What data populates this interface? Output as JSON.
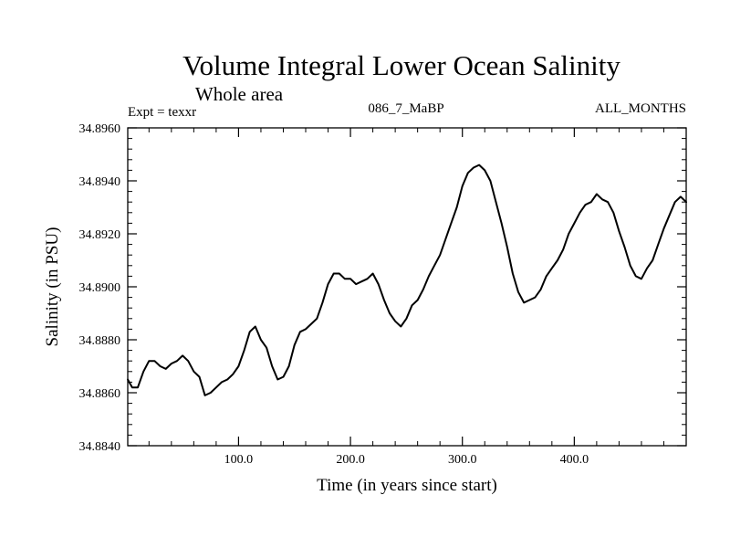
{
  "chart_data": {
    "type": "line",
    "title": "Volume Integral Lower Ocean Salinity",
    "subtitle": "Whole area",
    "left_label": "Expt = texxr",
    "center_label": "086_7_MaBP",
    "right_label": "ALL_MONTHS",
    "xlabel": "Time (in years since start)",
    "ylabel": "Salinity (in PSU)",
    "xlim": [
      1,
      500
    ],
    "ylim": [
      34.884,
      34.896
    ],
    "x_ticks": [
      100,
      200,
      300,
      400
    ],
    "x_tick_labels": [
      "100.0",
      "200.0",
      "300.0",
      "400.0"
    ],
    "y_ticks": [
      34.884,
      34.886,
      34.888,
      34.89,
      34.892,
      34.894,
      34.896
    ],
    "y_tick_labels": [
      "34.8840",
      "34.8860",
      "34.8880",
      "34.8900",
      "34.8920",
      "34.8940",
      "34.8960"
    ],
    "grid": false,
    "series": [
      {
        "name": "salinity",
        "color": "#000000",
        "x": [
          1,
          5,
          10,
          15,
          20,
          25,
          30,
          35,
          40,
          45,
          50,
          55,
          60,
          65,
          70,
          75,
          80,
          85,
          90,
          95,
          100,
          105,
          110,
          115,
          120,
          125,
          130,
          135,
          140,
          145,
          150,
          155,
          160,
          165,
          170,
          175,
          180,
          185,
          190,
          195,
          200,
          205,
          210,
          215,
          220,
          225,
          230,
          235,
          240,
          245,
          250,
          255,
          260,
          265,
          270,
          275,
          280,
          285,
          290,
          295,
          300,
          305,
          310,
          315,
          320,
          325,
          330,
          335,
          340,
          345,
          350,
          355,
          360,
          365,
          370,
          375,
          380,
          385,
          390,
          395,
          400,
          405,
          410,
          415,
          420,
          425,
          430,
          435,
          440,
          445,
          450,
          455,
          460,
          465,
          470,
          475,
          480,
          485,
          490,
          495,
          500
        ],
        "values": [
          34.8865,
          34.8862,
          34.8862,
          34.8868,
          34.8872,
          34.8872,
          34.887,
          34.8869,
          34.8871,
          34.8872,
          34.8874,
          34.8872,
          34.8868,
          34.8866,
          34.8859,
          34.886,
          34.8862,
          34.8864,
          34.8865,
          34.8867,
          34.887,
          34.8876,
          34.8883,
          34.8885,
          34.888,
          34.8877,
          34.887,
          34.8865,
          34.8866,
          34.887,
          34.8878,
          34.8883,
          34.8884,
          34.8886,
          34.8888,
          34.8894,
          34.8901,
          34.8905,
          34.8905,
          34.8903,
          34.8903,
          34.8901,
          34.8902,
          34.8903,
          34.8905,
          34.8901,
          34.8895,
          34.889,
          34.8887,
          34.8885,
          34.8888,
          34.8893,
          34.8895,
          34.8899,
          34.8904,
          34.8908,
          34.8912,
          34.8918,
          34.8924,
          34.893,
          34.8938,
          34.8943,
          34.8945,
          34.8946,
          34.8944,
          34.894,
          34.8932,
          34.8924,
          34.8915,
          34.8905,
          34.8898,
          34.8894,
          34.8895,
          34.8896,
          34.8899,
          34.8904,
          34.8907,
          34.891,
          34.8914,
          34.892,
          34.8924,
          34.8928,
          34.8931,
          34.8932,
          34.8935,
          34.8933,
          34.8932,
          34.8928,
          34.8921,
          34.8915,
          34.8908,
          34.8904,
          34.8903,
          34.8907,
          34.891,
          34.8916,
          34.8922,
          34.8927,
          34.8932,
          34.8934,
          34.8932
        ]
      }
    ]
  }
}
